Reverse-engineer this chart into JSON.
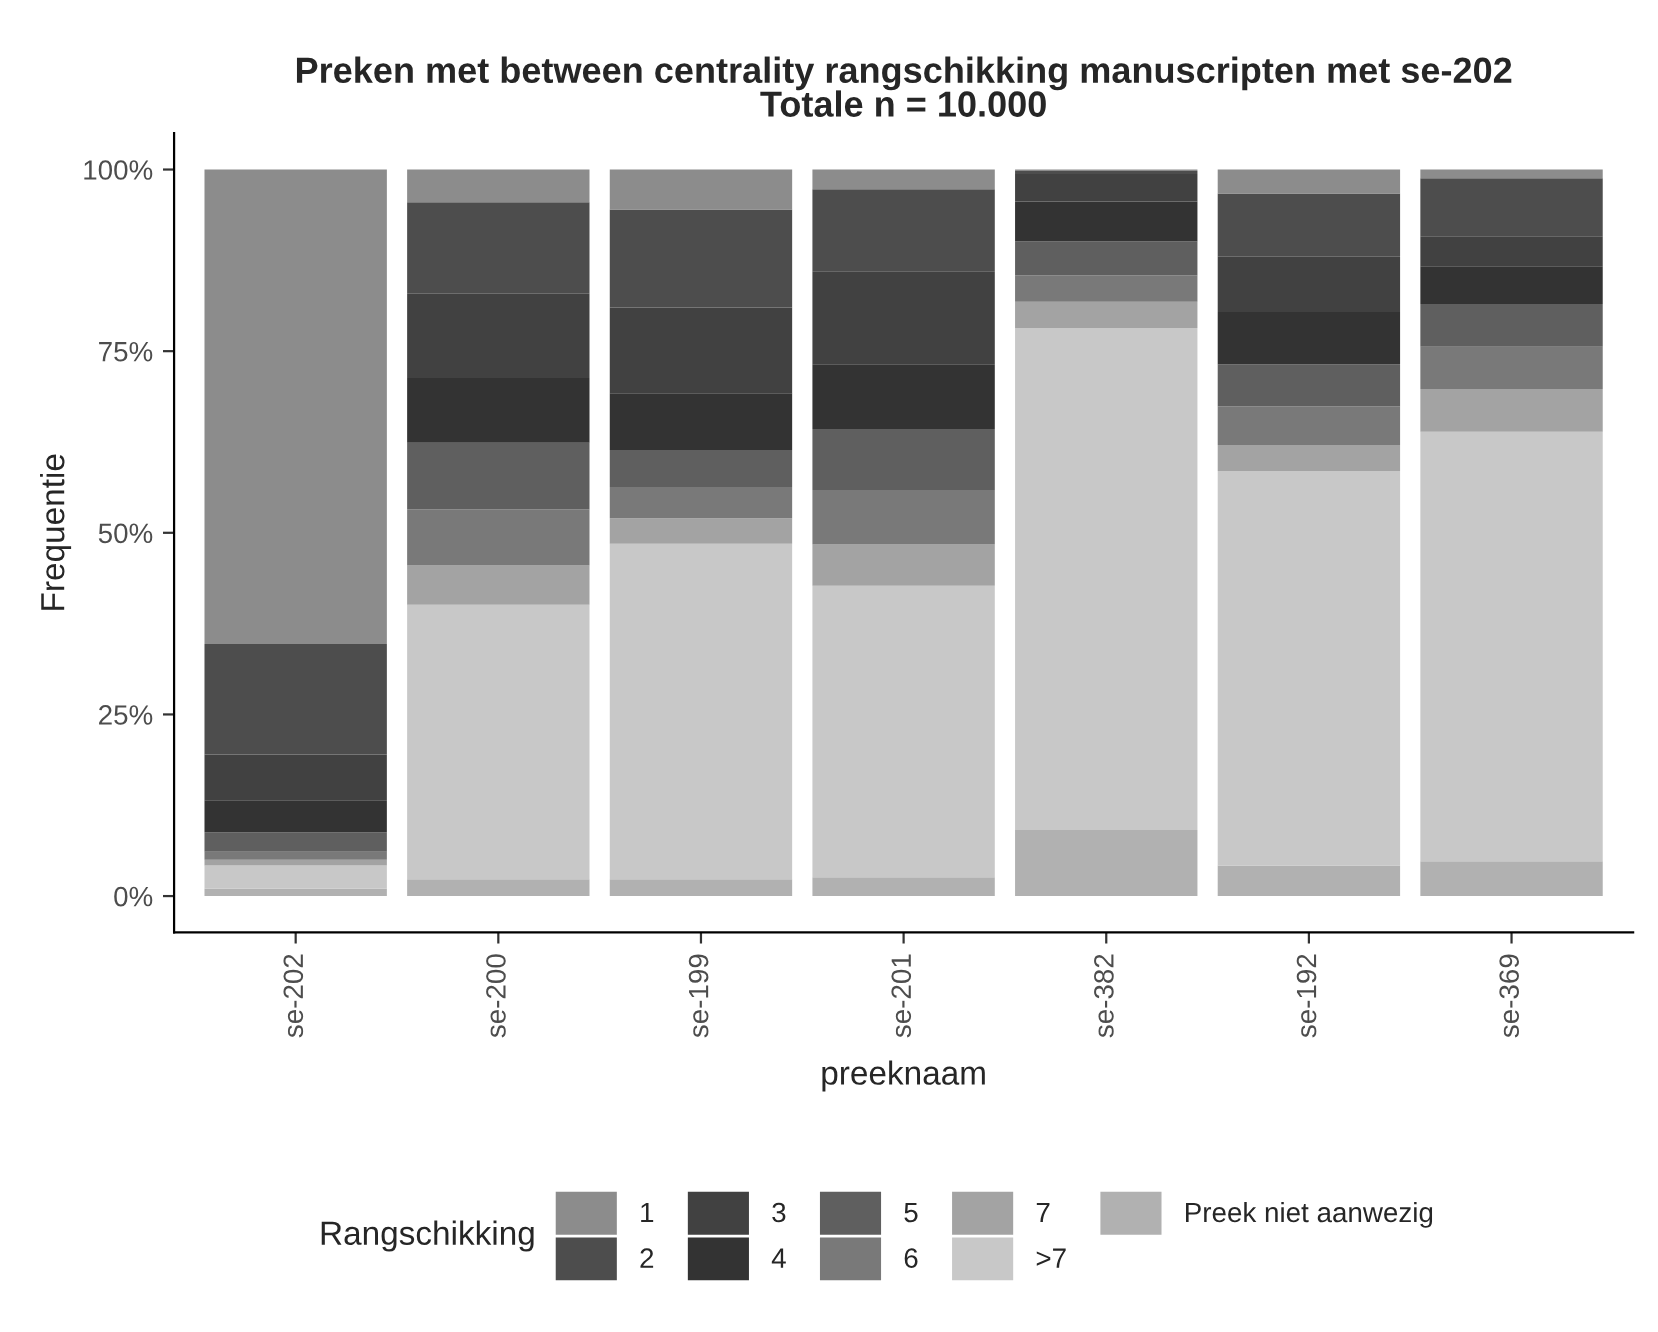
{
  "chart_data": {
    "type": "bar",
    "title": "Preken met between centrality rangschikking manuscripten met se-202\nTotale n = 10.000",
    "xlabel": "preeknaam",
    "ylabel": "Frequentie",
    "legend_title": "Rangschikking",
    "categories": [
      "se-202",
      "se-200",
      "se-199",
      "se-201",
      "se-382",
      "se-192",
      "se-369"
    ],
    "stacked": true,
    "legend": "bottom",
    "grid": false,
    "ylim": [
      -5,
      105
    ],
    "yticks": [
      {
        "value": 0,
        "label": "0%"
      },
      {
        "value": 25,
        "label": "25%"
      },
      {
        "value": 50,
        "label": "50%"
      },
      {
        "value": 75,
        "label": "75%"
      },
      {
        "value": 100,
        "label": "100%"
      }
    ],
    "series": [
      {
        "name": "Preek niet aanwezig",
        "color": "#b1b1b1",
        "values": [
          1.0,
          2.3,
          2.3,
          2.6,
          9.1,
          4.2,
          4.8
        ]
      },
      {
        "name": ">7",
        "color": "#c8c8c8",
        "values": [
          3.2,
          37.8,
          46.2,
          40.1,
          69.1,
          54.3,
          59.1
        ]
      },
      {
        "name": "7",
        "color": "#a3a3a3",
        "values": [
          0.8,
          5.4,
          3.5,
          5.7,
          3.6,
          3.6,
          5.9
        ]
      },
      {
        "name": "6",
        "color": "#797979",
        "values": [
          1.1,
          7.7,
          4.3,
          7.5,
          3.6,
          5.3,
          5.8
        ]
      },
      {
        "name": "5",
        "color": "#5f5f5f",
        "values": [
          2.7,
          9.2,
          5.1,
          8.4,
          4.7,
          5.8,
          5.9
        ]
      },
      {
        "name": "4",
        "color": "#333333",
        "values": [
          4.4,
          8.9,
          7.8,
          8.9,
          5.5,
          7.2,
          5.2
        ]
      },
      {
        "name": "3",
        "color": "#414141",
        "values": [
          6.3,
          11.6,
          11.8,
          12.8,
          3.8,
          7.6,
          4.1
        ]
      },
      {
        "name": "2",
        "color": "#4d4d4d",
        "values": [
          15.2,
          12.6,
          13.5,
          11.3,
          0.4,
          8.7,
          8.0
        ]
      },
      {
        "name": "1",
        "color": "#8c8c8c",
        "values": [
          65.3,
          4.5,
          5.5,
          2.7,
          0.2,
          3.3,
          1.2
        ]
      }
    ]
  }
}
